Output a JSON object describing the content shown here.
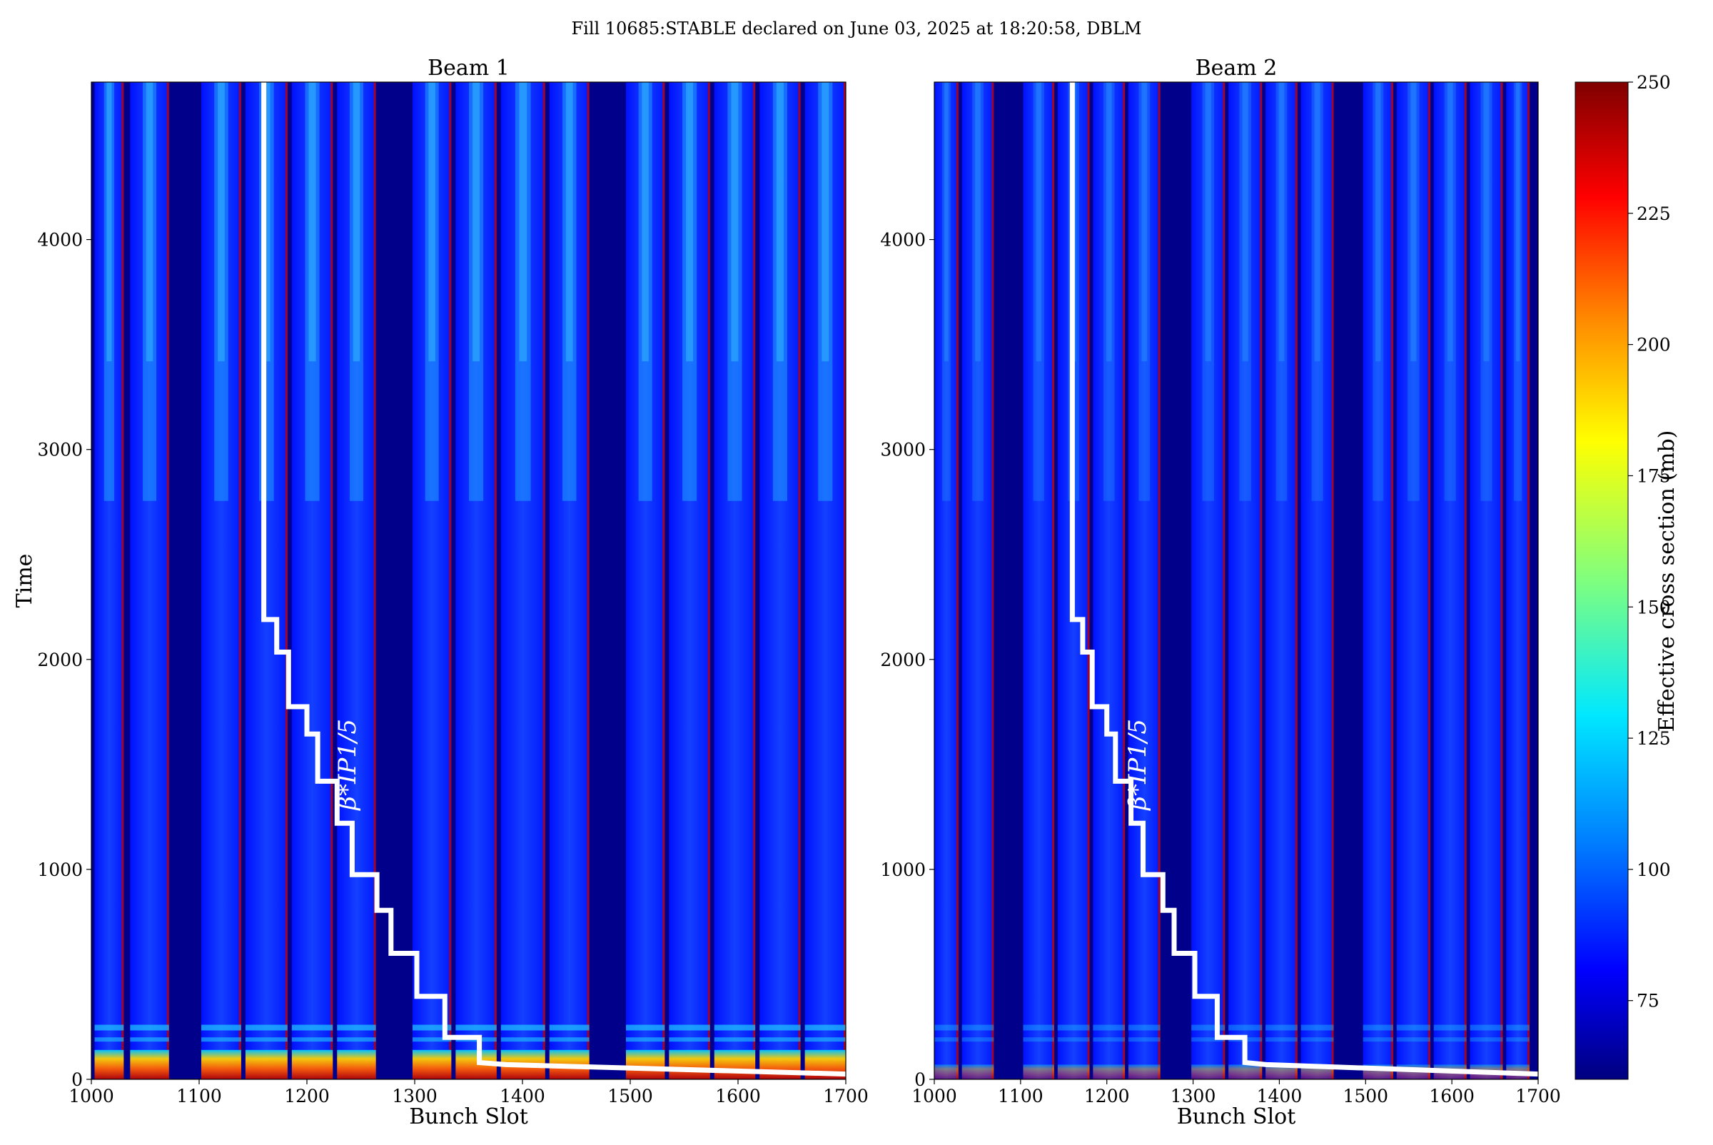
{
  "figure": {
    "suptitle": "Fill 10685:STABLE declared on June 03, 2025 at 18:20:58, DBLM"
  },
  "colorbar": {
    "label": "Effective cross section (mb)",
    "range": [
      60,
      250
    ],
    "ticks": [
      75,
      100,
      125,
      150,
      175,
      200,
      225,
      250
    ],
    "colormap": "jet",
    "colors": [
      "#00007f",
      "#0000ff",
      "#007fff",
      "#00ffff",
      "#7fff7f",
      "#ffff00",
      "#ff7f00",
      "#ff0000",
      "#7f0000"
    ]
  },
  "chart_data": [
    {
      "type": "heatmap",
      "title": "Beam 1",
      "xlabel": "Bunch Slot",
      "ylabel": "Time",
      "xlim": [
        1000,
        1700
      ],
      "ylim": [
        0,
        4750
      ],
      "xticks": [
        1000,
        1100,
        1200,
        1300,
        1400,
        1500,
        1600,
        1700
      ],
      "yticks": [
        0,
        1000,
        2000,
        3000,
        4000
      ],
      "filled_bunch_trains": [
        [
          1003,
          1030
        ],
        [
          1036,
          1072
        ],
        [
          1102,
          1139
        ],
        [
          1143,
          1182
        ],
        [
          1186,
          1224
        ],
        [
          1228,
          1264
        ],
        [
          1298,
          1334
        ],
        [
          1338,
          1376
        ],
        [
          1380,
          1421
        ],
        [
          1425,
          1462
        ],
        [
          1496,
          1532
        ],
        [
          1536,
          1574
        ],
        [
          1578,
          1616
        ],
        [
          1620,
          1658
        ],
        [
          1662,
          1700
        ]
      ],
      "annotation": "β*IP1/5",
      "beta_star_steps": [
        {
          "bunch_slot": 1160,
          "time": 4750
        },
        {
          "bunch_slot": 1160,
          "time": 2190
        },
        {
          "bunch_slot": 1172,
          "time": 2190
        },
        {
          "bunch_slot": 1172,
          "time": 2035
        },
        {
          "bunch_slot": 1183,
          "time": 2035
        },
        {
          "bunch_slot": 1183,
          "time": 1775
        },
        {
          "bunch_slot": 1200,
          "time": 1775
        },
        {
          "bunch_slot": 1200,
          "time": 1645
        },
        {
          "bunch_slot": 1210,
          "time": 1645
        },
        {
          "bunch_slot": 1210,
          "time": 1420
        },
        {
          "bunch_slot": 1228,
          "time": 1420
        },
        {
          "bunch_slot": 1228,
          "time": 1220
        },
        {
          "bunch_slot": 1242,
          "time": 1220
        },
        {
          "bunch_slot": 1242,
          "time": 975
        },
        {
          "bunch_slot": 1265,
          "time": 975
        },
        {
          "bunch_slot": 1265,
          "time": 805
        },
        {
          "bunch_slot": 1278,
          "time": 805
        },
        {
          "bunch_slot": 1278,
          "time": 600
        },
        {
          "bunch_slot": 1302,
          "time": 600
        },
        {
          "bunch_slot": 1302,
          "time": 395
        },
        {
          "bunch_slot": 1328,
          "time": 395
        },
        {
          "bunch_slot": 1328,
          "time": 200
        },
        {
          "bunch_slot": 1360,
          "time": 200
        },
        {
          "bunch_slot": 1360,
          "time": 80
        },
        {
          "bunch_slot": 1385,
          "time": 70
        },
        {
          "bunch_slot": 1700,
          "time": 25
        }
      ]
    },
    {
      "type": "heatmap",
      "title": "Beam 2",
      "xlabel": "Bunch Slot",
      "ylabel": "",
      "xlim": [
        1000,
        1700
      ],
      "ylim": [
        0,
        4750
      ],
      "xticks": [
        1000,
        1100,
        1200,
        1300,
        1400,
        1500,
        1600,
        1700
      ],
      "yticks": [
        0,
        1000,
        2000,
        3000,
        4000
      ],
      "filled_bunch_trains": [
        [
          1000,
          1028
        ],
        [
          1032,
          1069
        ],
        [
          1103,
          1139
        ],
        [
          1143,
          1180
        ],
        [
          1184,
          1221
        ],
        [
          1225,
          1262
        ],
        [
          1298,
          1337
        ],
        [
          1341,
          1380
        ],
        [
          1384,
          1421
        ],
        [
          1425,
          1463
        ],
        [
          1497,
          1532
        ],
        [
          1536,
          1575
        ],
        [
          1579,
          1617
        ],
        [
          1621,
          1659
        ],
        [
          1663,
          1690
        ]
      ],
      "annotation": "β*IP1/5",
      "beta_star_steps": [
        {
          "bunch_slot": 1160,
          "time": 4750
        },
        {
          "bunch_slot": 1160,
          "time": 2190
        },
        {
          "bunch_slot": 1172,
          "time": 2190
        },
        {
          "bunch_slot": 1172,
          "time": 2035
        },
        {
          "bunch_slot": 1183,
          "time": 2035
        },
        {
          "bunch_slot": 1183,
          "time": 1775
        },
        {
          "bunch_slot": 1200,
          "time": 1775
        },
        {
          "bunch_slot": 1200,
          "time": 1645
        },
        {
          "bunch_slot": 1210,
          "time": 1645
        },
        {
          "bunch_slot": 1210,
          "time": 1420
        },
        {
          "bunch_slot": 1228,
          "time": 1420
        },
        {
          "bunch_slot": 1228,
          "time": 1220
        },
        {
          "bunch_slot": 1242,
          "time": 1220
        },
        {
          "bunch_slot": 1242,
          "time": 975
        },
        {
          "bunch_slot": 1265,
          "time": 975
        },
        {
          "bunch_slot": 1265,
          "time": 805
        },
        {
          "bunch_slot": 1278,
          "time": 805
        },
        {
          "bunch_slot": 1278,
          "time": 600
        },
        {
          "bunch_slot": 1302,
          "time": 600
        },
        {
          "bunch_slot": 1302,
          "time": 395
        },
        {
          "bunch_slot": 1328,
          "time": 395
        },
        {
          "bunch_slot": 1328,
          "time": 200
        },
        {
          "bunch_slot": 1360,
          "time": 200
        },
        {
          "bunch_slot": 1360,
          "time": 80
        },
        {
          "bunch_slot": 1385,
          "time": 70
        },
        {
          "bunch_slot": 1700,
          "time": 25
        }
      ]
    }
  ]
}
